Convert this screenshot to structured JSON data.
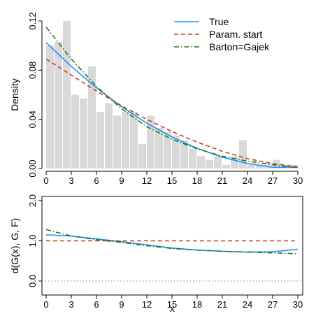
{
  "chart_data": [
    {
      "type": "bar",
      "ylabel": "Density",
      "xlim": [
        0,
        30
      ],
      "ylim": [
        0,
        0.12
      ],
      "x_ticks": [
        0,
        3,
        6,
        9,
        12,
        15,
        18,
        21,
        24,
        27,
        30
      ],
      "y_ticks": [
        0.0,
        0.04,
        0.08,
        0.12
      ],
      "y_tick_labels": [
        "0.00",
        "0.04",
        "0.08",
        "0.12"
      ],
      "grid": false,
      "legend_position": "top-right",
      "histogram": {
        "bin_width": 1,
        "bin_starts": [
          0,
          1,
          2,
          3,
          4,
          5,
          6,
          7,
          8,
          9,
          10,
          11,
          12,
          13,
          14,
          15,
          16,
          17,
          18,
          19,
          20,
          21,
          22,
          23,
          24,
          25,
          26,
          27,
          28,
          29
        ],
        "values": [
          0.1,
          0.103,
          0.12,
          0.06,
          0.057,
          0.083,
          0.046,
          0.053,
          0.043,
          0.046,
          0.046,
          0.02,
          0.043,
          0.033,
          0.03,
          0.027,
          0.023,
          0.016,
          0.01,
          0.007,
          0.01,
          0.003,
          0.01,
          0.023,
          0.003,
          0.003,
          0.003,
          0.007,
          0.003,
          0.003
        ],
        "color": "#d9d9d9"
      },
      "series": [
        {
          "name": "True",
          "color": "#1e90ff",
          "style": "solid",
          "x": [
            0,
            3,
            6,
            9,
            12,
            15,
            18,
            21,
            24,
            27,
            30
          ],
          "values": [
            0.1025,
            0.083,
            0.0656,
            0.0502,
            0.0369,
            0.0256,
            0.0164,
            0.0092,
            0.0041,
            0.001,
            0.001
          ]
        },
        {
          "name": "Param. start",
          "color": "#cd3b1f",
          "style": "dashed",
          "x": [
            0,
            3,
            6,
            9,
            12,
            15,
            18,
            21,
            24,
            27,
            30
          ],
          "values": [
            0.089,
            0.076,
            0.063,
            0.051,
            0.04,
            0.03,
            0.0215,
            0.014,
            0.008,
            0.004,
            0.0012
          ]
        },
        {
          "name": "Barton=Gajek",
          "color": "#1a7a1a",
          "style": "dotdash",
          "x": [
            0,
            3,
            6,
            9,
            12,
            15,
            18,
            21,
            24,
            27,
            30
          ],
          "values": [
            0.115,
            0.089,
            0.0668,
            0.0485,
            0.034,
            0.0238,
            0.016,
            0.01,
            0.006,
            0.003,
            0.0008
          ]
        }
      ]
    },
    {
      "type": "line",
      "xlabel": "x",
      "ylabel": "d(G(x), G, F)",
      "xlim": [
        0,
        30
      ],
      "ylim": [
        0,
        2
      ],
      "x_ticks": [
        0,
        3,
        6,
        9,
        12,
        15,
        18,
        21,
        24,
        27,
        30
      ],
      "y_ticks": [
        0,
        1,
        2
      ],
      "y_tick_labels": [
        "0.0",
        "1.0",
        "2.0"
      ],
      "grid": false,
      "reference_lines": [
        {
          "y": 0,
          "color": "#999999",
          "style": "dotted"
        }
      ],
      "series": [
        {
          "name": "True",
          "color": "#1e90ff",
          "style": "solid",
          "x": [
            0,
            3,
            6,
            9,
            12,
            15,
            18,
            21,
            24,
            27,
            30
          ],
          "values": [
            1.15,
            1.12,
            1.05,
            0.98,
            0.9,
            0.82,
            0.77,
            0.74,
            0.72,
            0.73,
            0.79
          ]
        },
        {
          "name": "Param. start",
          "color": "#cd3b1f",
          "style": "dashed",
          "x": [
            0,
            30
          ],
          "values": [
            1.0,
            1.0
          ]
        },
        {
          "name": "Barton=Gajek",
          "color": "#1a7a1a",
          "style": "dotdash",
          "x": [
            0,
            3,
            6,
            9,
            12,
            15,
            18,
            21,
            24,
            27,
            30
          ],
          "values": [
            1.28,
            1.12,
            1.03,
            0.96,
            0.88,
            0.81,
            0.77,
            0.74,
            0.72,
            0.7,
            0.68
          ]
        }
      ]
    }
  ]
}
